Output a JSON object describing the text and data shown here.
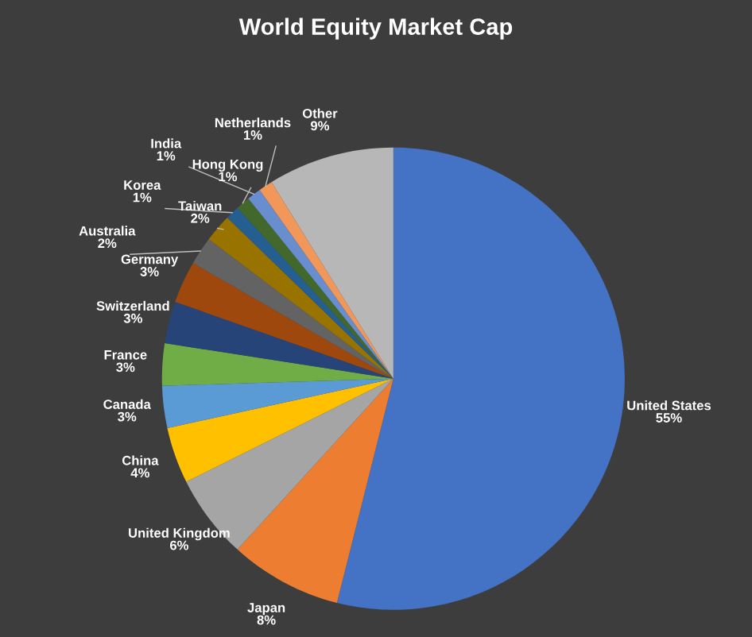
{
  "chart_data": {
    "type": "pie",
    "title": "World Equity Market Cap",
    "categories": [
      "United States",
      "Japan",
      "United Kingdom",
      "China",
      "Canada",
      "France",
      "Switzerland",
      "Germany",
      "Australia",
      "Taiwan",
      "Korea",
      "Hong Kong",
      "India",
      "Netherlands",
      "Other"
    ],
    "values": [
      55,
      8,
      6,
      4,
      3,
      3,
      3,
      3,
      2,
      2,
      1,
      1,
      1,
      1,
      9
    ],
    "colors": [
      "#4472c4",
      "#ed7d31",
      "#a5a5a5",
      "#ffc000",
      "#5b9bd5",
      "#70ad47",
      "#264478",
      "#9e480e",
      "#636363",
      "#997300",
      "#255e91",
      "#43682b",
      "#698ed0",
      "#f1975a",
      "#b7b7b7"
    ],
    "value_labels": [
      "55%",
      "8%",
      "6%",
      "4%",
      "3%",
      "3%",
      "3%",
      "3%",
      "2%",
      "2%",
      "1%",
      "1%",
      "1%",
      "1%",
      "9%"
    ]
  }
}
